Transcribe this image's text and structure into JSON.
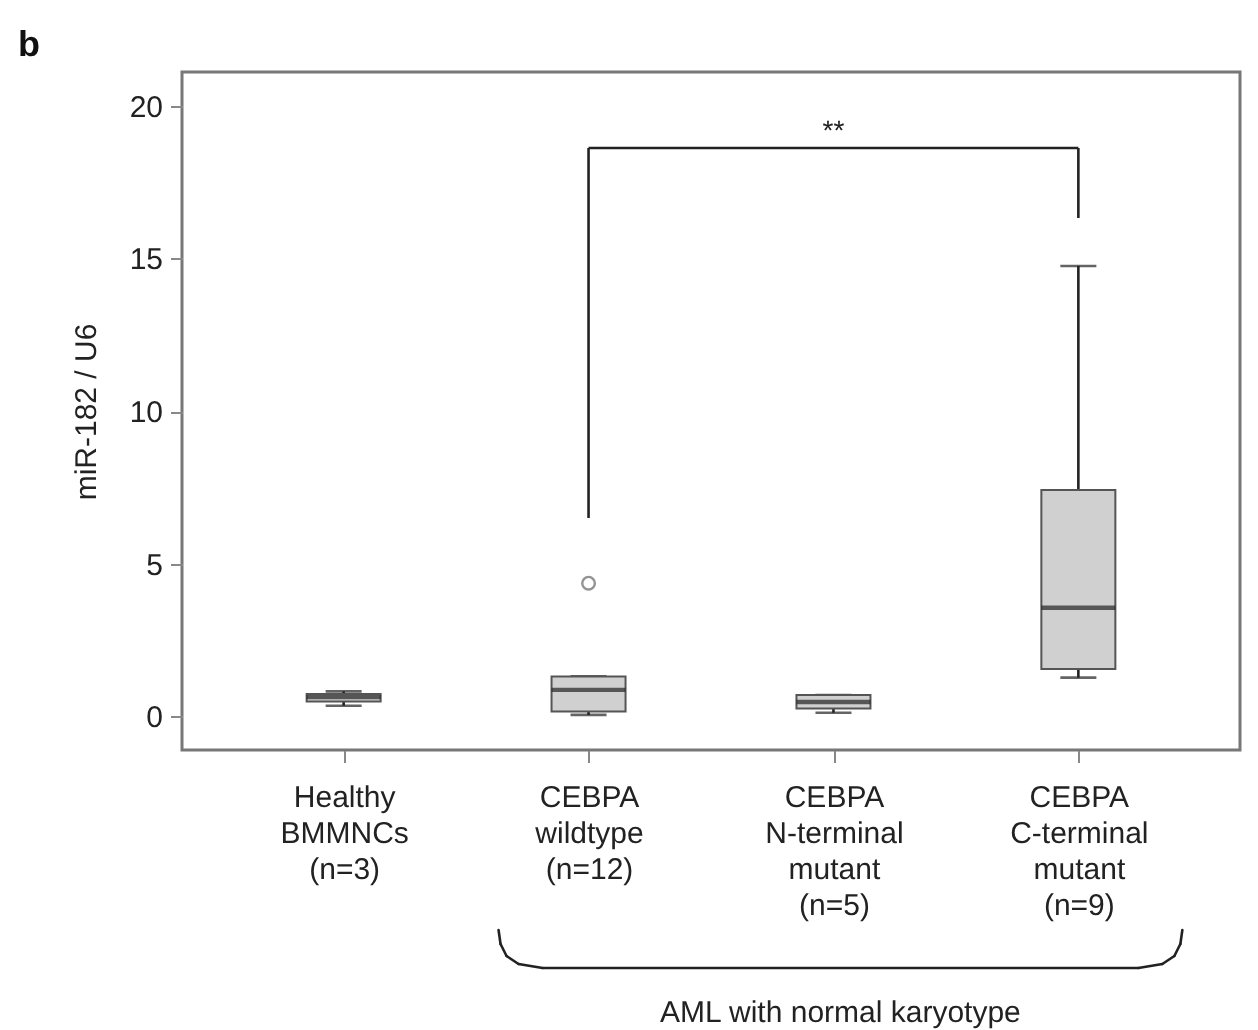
{
  "chart_data": {
    "type": "box",
    "title": "b",
    "ylabel": "miR-182 / U6",
    "categories": [
      "Healthy\nBMMNCs\n\n(n=3)",
      "CEBPA\nwildtype\n\n(n=12)",
      "CEBPA\nN-terminal\nmutant\n(n=5)",
      "CEBPA\nC-terminal\nmutant\n(n=9)"
    ],
    "boxes": [
      {
        "low": 0.35,
        "q1": 0.49,
        "median": 0.63,
        "q3": 0.73,
        "high": 0.82
      },
      {
        "low": 0.05,
        "q1": 0.16,
        "median": 0.87,
        "q3": 1.31,
        "high": 1.31,
        "outliers": [
          4.36
        ]
      },
      {
        "low": 0.12,
        "q1": 0.26,
        "median": 0.47,
        "q3": 0.7,
        "high": 0.7
      },
      {
        "low": 1.27,
        "q1": 1.55,
        "median": 3.56,
        "q3": 7.41,
        "high": 14.75
      }
    ],
    "color": "#d0d0d0",
    "ylim": [
      -1.1,
      21.1
    ],
    "yticks": [
      0,
      5,
      10,
      15,
      20
    ],
    "grid": false,
    "annotations": [
      "**",
      "AML with normal karyotype"
    ]
  }
}
